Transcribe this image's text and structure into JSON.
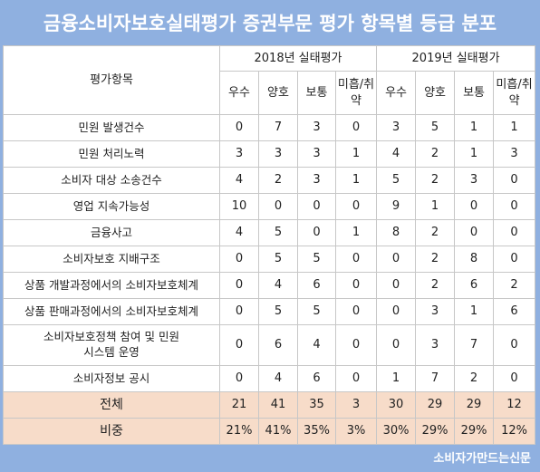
{
  "title": "금융소비자보호실태평가 증권부문 평가 항목별 등급 분포",
  "footer": "소비자가만드는신문",
  "header": {
    "item": "평가항목",
    "groups": [
      "2018년 실태평가",
      "2019년 실태평가"
    ],
    "grades": [
      "우수",
      "양호",
      "보통",
      "미흡/취약"
    ]
  },
  "rows": [
    {
      "label": "민원 발생건수",
      "y2018": [
        "0",
        "7",
        "3",
        "0"
      ],
      "y2019": [
        "3",
        "5",
        "1",
        "1"
      ]
    },
    {
      "label": "민원 처리노력",
      "y2018": [
        "3",
        "3",
        "3",
        "1"
      ],
      "y2019": [
        "4",
        "2",
        "1",
        "3"
      ]
    },
    {
      "label": "소비자 대상 소송건수",
      "y2018": [
        "4",
        "2",
        "3",
        "1"
      ],
      "y2019": [
        "5",
        "2",
        "3",
        "0"
      ]
    },
    {
      "label": "영업 지속가능성",
      "y2018": [
        "10",
        "0",
        "0",
        "0"
      ],
      "y2019": [
        "9",
        "1",
        "0",
        "0"
      ]
    },
    {
      "label": "금융사고",
      "y2018": [
        "4",
        "5",
        "0",
        "1"
      ],
      "y2019": [
        "8",
        "2",
        "0",
        "0"
      ]
    },
    {
      "label": "소비자보호 지배구조",
      "y2018": [
        "0",
        "5",
        "5",
        "0"
      ],
      "y2019": [
        "0",
        "2",
        "8",
        "0"
      ]
    },
    {
      "label": "상품 개발과정에서의 소비자보호체계",
      "y2018": [
        "0",
        "4",
        "6",
        "0"
      ],
      "y2019": [
        "0",
        "2",
        "6",
        "2"
      ]
    },
    {
      "label": "상품 판매과정에서의 소비자보호체계",
      "y2018": [
        "0",
        "5",
        "5",
        "0"
      ],
      "y2019": [
        "0",
        "3",
        "1",
        "6"
      ]
    },
    {
      "label": "소비자보호정책 참여 및 민원시스템 운영",
      "y2018": [
        "0",
        "6",
        "4",
        "0"
      ],
      "y2019": [
        "0",
        "3",
        "7",
        "0"
      ]
    },
    {
      "label": "소비자정보 공시",
      "y2018": [
        "0",
        "4",
        "6",
        "0"
      ],
      "y2019": [
        "1",
        "7",
        "2",
        "0"
      ]
    }
  ],
  "total": {
    "label": "전체",
    "y2018": [
      "21",
      "41",
      "35",
      "3"
    ],
    "y2019": [
      "30",
      "29",
      "29",
      "12"
    ]
  },
  "ratio": {
    "label": "비중",
    "y2018": [
      "21%",
      "41%",
      "35%",
      "3%"
    ],
    "y2019": [
      "30%",
      "29%",
      "29%",
      "12%"
    ]
  }
}
